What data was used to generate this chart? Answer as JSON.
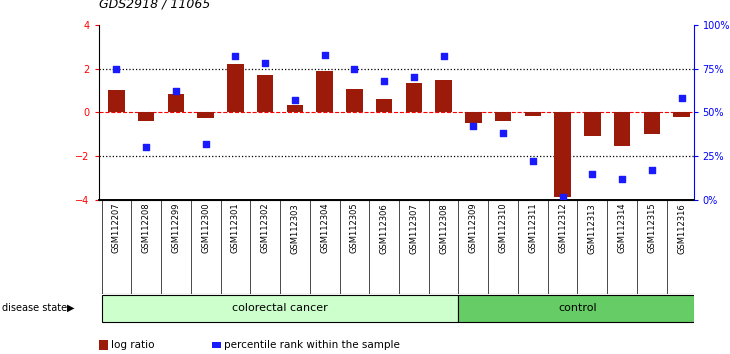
{
  "title": "GDS2918 / 11065",
  "categories": [
    "GSM112207",
    "GSM112208",
    "GSM112299",
    "GSM112300",
    "GSM112301",
    "GSM112302",
    "GSM112303",
    "GSM112304",
    "GSM112305",
    "GSM112306",
    "GSM112307",
    "GSM112308",
    "GSM112309",
    "GSM112310",
    "GSM112311",
    "GSM112312",
    "GSM112313",
    "GSM112314",
    "GSM112315",
    "GSM112316"
  ],
  "log_ratio": [
    1.0,
    -0.4,
    0.85,
    -0.25,
    2.2,
    1.7,
    0.35,
    1.9,
    1.05,
    0.6,
    1.35,
    1.5,
    -0.5,
    -0.4,
    -0.15,
    -3.85,
    -1.1,
    -1.55,
    -1.0,
    -0.2
  ],
  "percentile_rank": [
    75,
    30,
    62,
    32,
    82,
    78,
    57,
    83,
    75,
    68,
    70,
    82,
    42,
    38,
    22,
    2,
    15,
    12,
    17,
    58
  ],
  "n_colorectal": 12,
  "n_control": 8,
  "bar_color": "#9b1a0a",
  "dot_color": "#1a1aff",
  "ylim": [
    -4,
    4
  ],
  "yticks": [
    -4,
    -2,
    0,
    2,
    4
  ],
  "y2lim": [
    0,
    100
  ],
  "y2ticks": [
    0,
    25,
    50,
    75,
    100
  ],
  "y2ticklabels": [
    "0%",
    "25%",
    "50%",
    "75%",
    "100%"
  ],
  "hline_dotted": [
    2.0,
    -2.0
  ],
  "hline_dashed": 0.0,
  "legend_bar_label": "log ratio",
  "legend_dot_label": "percentile rank within the sample",
  "colorectal_label": "colorectal cancer",
  "control_label": "control",
  "disease_state_label": "disease state",
  "colorectal_fill": "#ccffcc",
  "control_fill": "#66cc66",
  "label_area_fill": "#c8c8c8",
  "xlim_min": -0.6,
  "xlim_max": 19.4
}
